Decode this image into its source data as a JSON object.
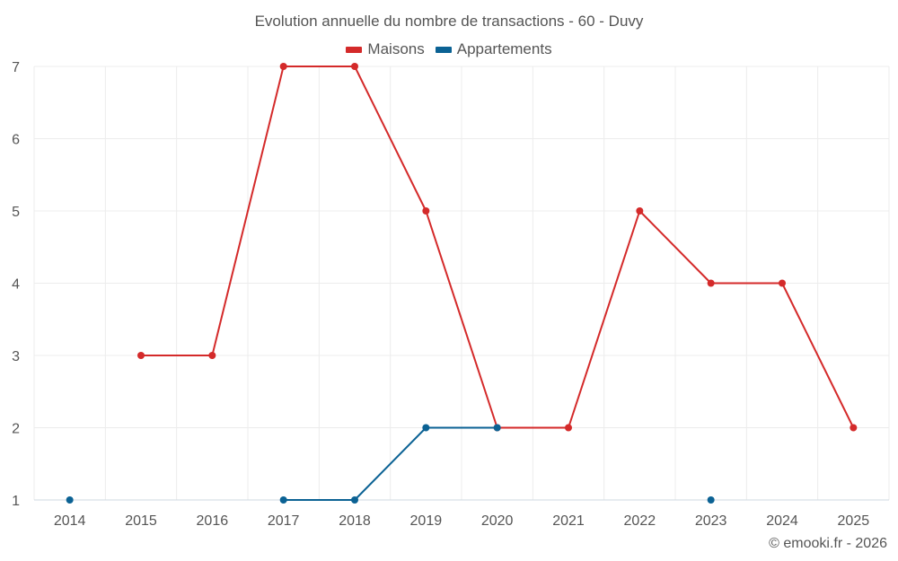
{
  "chart_data": {
    "type": "line",
    "title": "Evolution annuelle du nombre de transactions - 60 - Duvy",
    "xlabel": "",
    "ylabel": "",
    "categories": [
      "2014",
      "2015",
      "2016",
      "2017",
      "2018",
      "2019",
      "2020",
      "2021",
      "2022",
      "2023",
      "2024",
      "2025"
    ],
    "ylim": [
      1,
      7
    ],
    "yticks": [
      1,
      2,
      3,
      4,
      5,
      6,
      7
    ],
    "grid": true,
    "legend_position": "top-center",
    "series": [
      {
        "name": "Maisons",
        "color": "#d42a2a",
        "values": [
          null,
          3,
          3,
          7,
          7,
          5,
          2,
          2,
          5,
          4,
          4,
          2
        ]
      },
      {
        "name": "Appartements",
        "color": "#0b6294",
        "values": [
          1,
          null,
          null,
          1,
          1,
          2,
          2,
          null,
          null,
          1,
          null,
          null
        ]
      }
    ]
  },
  "credit": "© emooki.fr - 2026"
}
